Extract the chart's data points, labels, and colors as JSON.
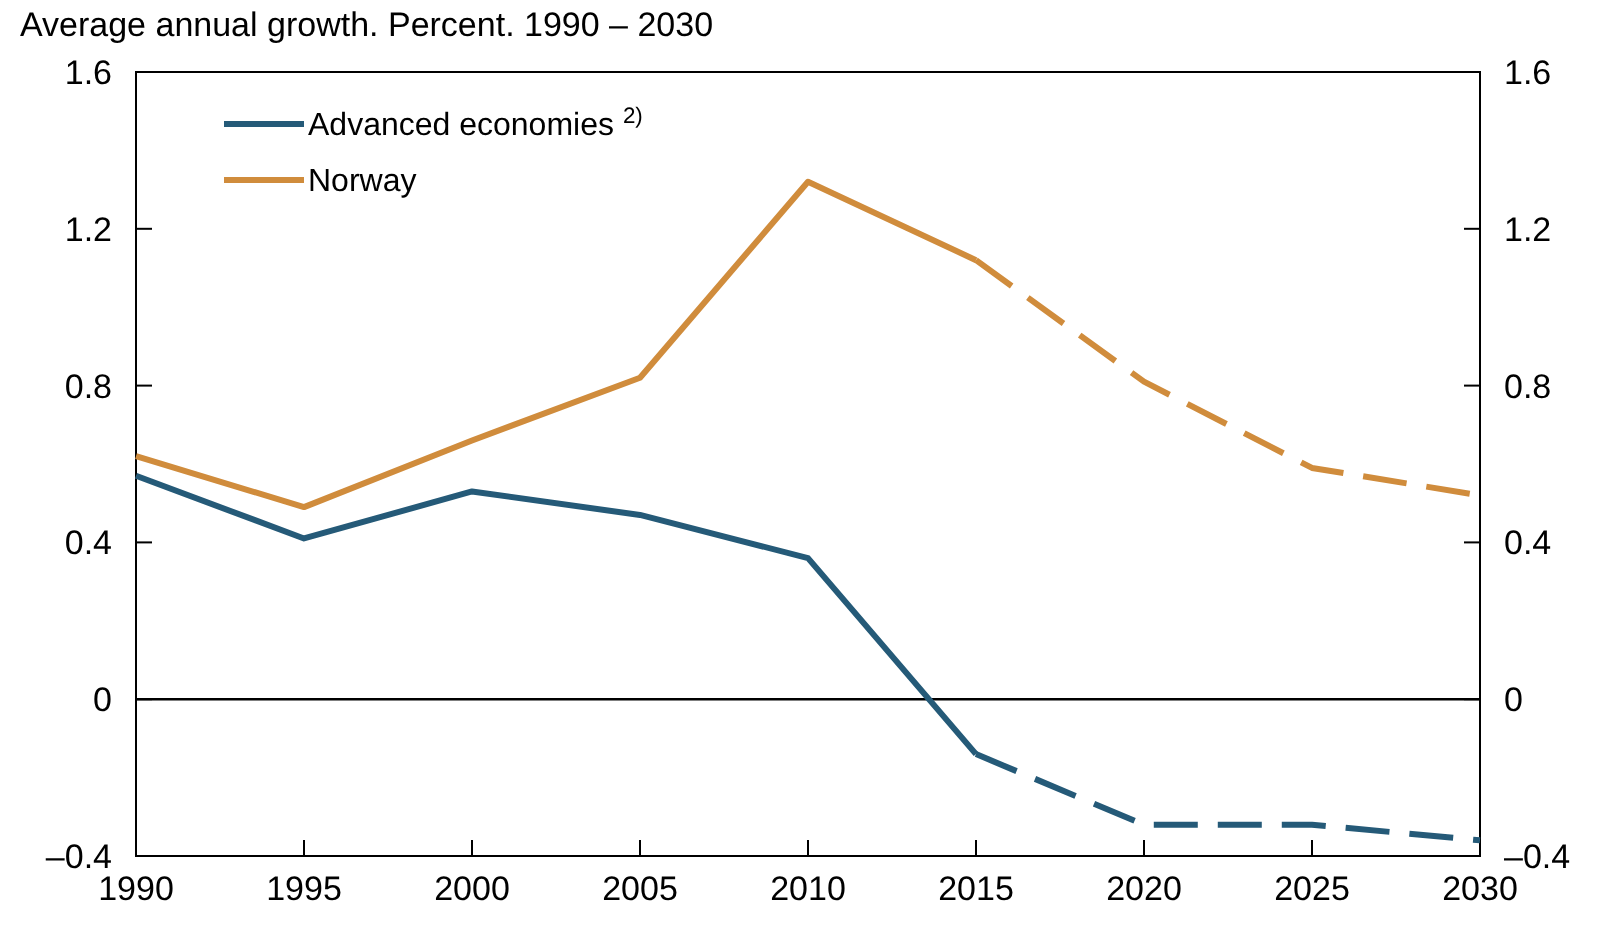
{
  "chart_data": {
    "type": "line",
    "title": "Average annual growth. Percent. 1990 – 2030",
    "series": [
      {
        "name": "Advanced economies $^{2)}$",
        "color": "#255a78",
        "x": [
          1990,
          1995,
          2000,
          2005,
          2010,
          2015
        ],
        "values": [
          0.57,
          0.41,
          0.53,
          0.47,
          0.36,
          -0.14
        ],
        "line_style": "solid"
      },
      {
        "color": "#255a78",
        "x": [
          2015,
          2020,
          2025,
          2030
        ],
        "values": [
          -0.14,
          -0.32,
          -0.32,
          -0.36
        ],
        "line_style": "dashed"
      },
      {
        "name": "Norway",
        "color": "#d08c3c",
        "x": [
          1990,
          1995,
          2000,
          2005,
          2010,
          2015
        ],
        "values": [
          0.62,
          0.49,
          0.66,
          0.82,
          1.32,
          1.12
        ],
        "line_style": "solid"
      },
      {
        "color": "#d08c3c",
        "x": [
          2015,
          2020,
          2025,
          2030
        ],
        "values": [
          1.12,
          0.81,
          0.59,
          0.52
        ],
        "line_style": "dashed"
      }
    ],
    "xlim": [
      1990,
      2030
    ],
    "xticks": [
      1990,
      1995,
      2000,
      2005,
      2010,
      2015,
      2020,
      2025,
      2030
    ],
    "ylim": [
      -0.4,
      1.6
    ],
    "yticks": [
      {
        "value": -0.4,
        "label": "–0.4"
      },
      0,
      0.4,
      0.8,
      1.2,
      1.6
    ],
    "y2lim": [
      -0.4,
      1.6
    ],
    "y2ticks": [
      {
        "value": -0.4,
        "label": "–0.4"
      },
      0,
      0.4,
      0.8,
      1.2,
      1.6
    ],
    "ref_lines": [
      {
        "axis": "y",
        "value": 0,
        "color": "#000000"
      }
    ],
    "grid": false,
    "legend": "top left"
  }
}
